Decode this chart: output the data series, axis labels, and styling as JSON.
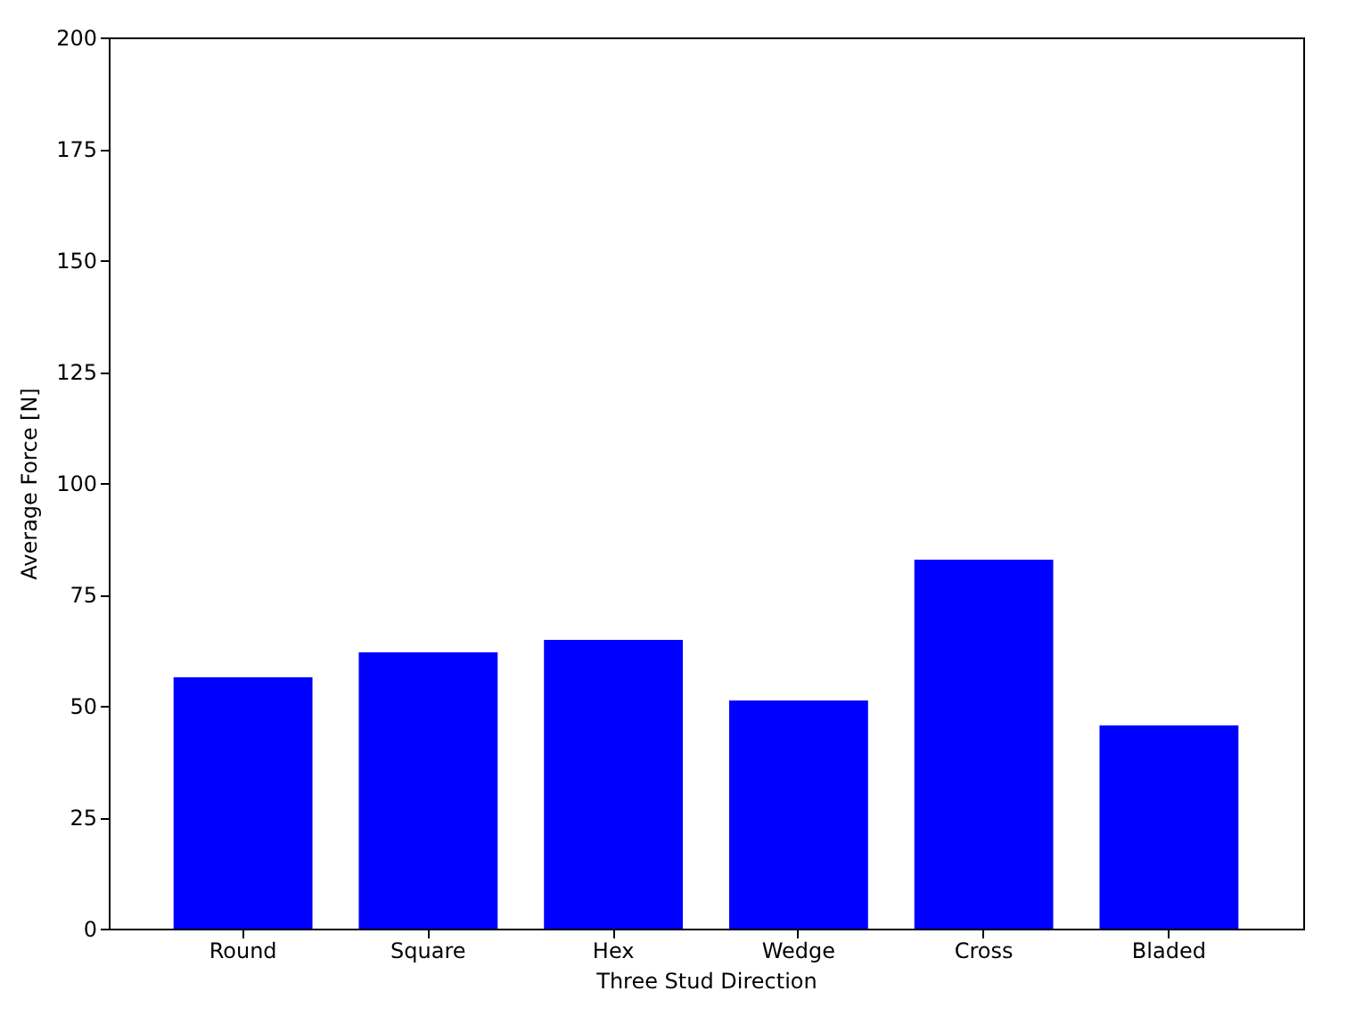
{
  "chart_data": {
    "type": "bar",
    "xlabel": "Three Stud Direction",
    "ylabel": "Average Force [N]",
    "categories": [
      "Round",
      "Square",
      "Hex",
      "Wedge",
      "Cross",
      "Bladed"
    ],
    "values": [
      56.4,
      62,
      64.8,
      51.2,
      82.8,
      45.6
    ],
    "color": "#0000ff",
    "ylim": [
      0,
      200
    ],
    "yticks": [
      0,
      25,
      50,
      75,
      100,
      125,
      150,
      175,
      200
    ],
    "grid": false
  }
}
